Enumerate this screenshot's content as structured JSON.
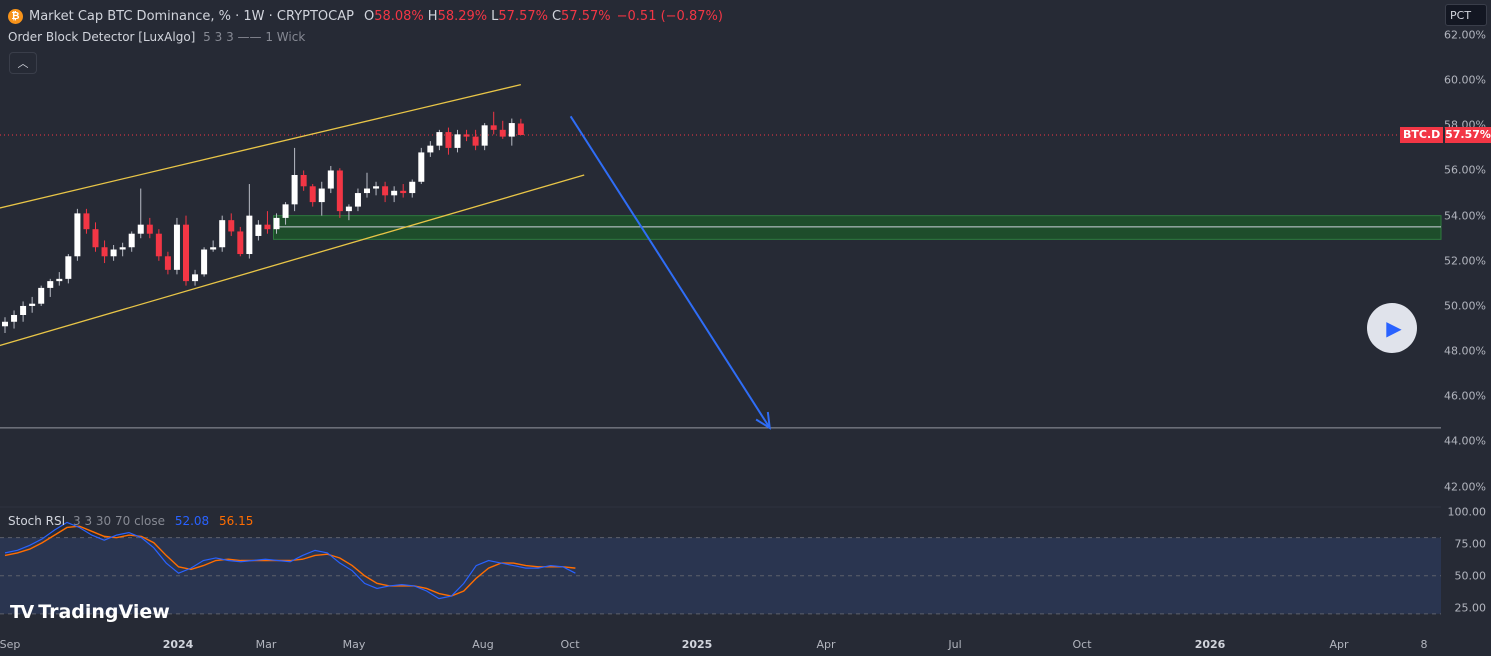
{
  "header": {
    "coin_glyph": "₿",
    "title": "Market Cap BTC Dominance, % · 1W · CRYPTOCAP",
    "open_label": "O",
    "open_value": "58.08%",
    "high_label": "H",
    "high_value": "58.29%",
    "low_label": "L",
    "low_value": "57.57%",
    "close_label": "C",
    "close_value": "57.57%",
    "change": "−0.51 (−0.87%)"
  },
  "indicator": {
    "name": "Order Block Detector [LuxAlgo]",
    "params": "5 3 3 —— 1 Wick",
    "collapse_icon": "chevron-up-icon"
  },
  "stoch": {
    "name": "Stoch RSI",
    "params": "3 3 30 70 close",
    "k_value": "52.08",
    "d_value": "56.15",
    "ticks": [
      "100.00",
      "75.00",
      "50.00",
      "25.00"
    ]
  },
  "scale_mode": "PCT",
  "price_axis": [
    "62.00%",
    "60.00%",
    "58.00%",
    "56.00%",
    "54.00%",
    "52.00%",
    "50.00%",
    "48.00%",
    "46.00%",
    "44.00%",
    "42.00%"
  ],
  "last_price": {
    "symbol": "BTC.D",
    "value": "57.57%"
  },
  "time_axis": [
    {
      "label": "Sep",
      "bold": false
    },
    {
      "label": "2024",
      "bold": true
    },
    {
      "label": "Mar",
      "bold": false
    },
    {
      "label": "May",
      "bold": false
    },
    {
      "label": "Aug",
      "bold": false
    },
    {
      "label": "Oct",
      "bold": false
    },
    {
      "label": "2025",
      "bold": true
    },
    {
      "label": "Apr",
      "bold": false
    },
    {
      "label": "Jul",
      "bold": false
    },
    {
      "label": "Oct",
      "bold": false
    },
    {
      "label": "2026",
      "bold": true
    },
    {
      "label": "Apr",
      "bold": false
    },
    {
      "label": "8",
      "bold": false
    }
  ],
  "logo": {
    "mark": "TV",
    "text": "TradingView"
  },
  "colors": {
    "background": "#262a35",
    "up": "#ffffff",
    "down": "#f23645",
    "channel": "#e8c547",
    "arrow": "#2f6df6",
    "order_block": "#1e4d2b",
    "stoch_k": "#2962ff",
    "stoch_d": "#ff6d00",
    "stoch_band": "#2a3550"
  },
  "chart_data": {
    "type": "candlestick",
    "title": "Market Cap BTC Dominance, % · 1W · CRYPTOCAP",
    "y_unit": "%",
    "ylim": [
      41.0,
      62.5
    ],
    "candles": [
      {
        "o": 49.1,
        "h": 49.5,
        "l": 48.8,
        "c": 49.3
      },
      {
        "o": 49.3,
        "h": 49.8,
        "l": 49.0,
        "c": 49.6
      },
      {
        "o": 49.6,
        "h": 50.2,
        "l": 49.3,
        "c": 50.0
      },
      {
        "o": 50.0,
        "h": 50.4,
        "l": 49.7,
        "c": 50.1
      },
      {
        "o": 50.1,
        "h": 50.9,
        "l": 50.0,
        "c": 50.8
      },
      {
        "o": 50.8,
        "h": 51.2,
        "l": 50.4,
        "c": 51.1
      },
      {
        "o": 51.1,
        "h": 51.5,
        "l": 50.9,
        "c": 51.2
      },
      {
        "o": 51.2,
        "h": 52.3,
        "l": 51.0,
        "c": 52.2
      },
      {
        "o": 52.2,
        "h": 54.3,
        "l": 52.0,
        "c": 54.1
      },
      {
        "o": 54.1,
        "h": 54.3,
        "l": 53.2,
        "c": 53.4
      },
      {
        "o": 53.4,
        "h": 53.7,
        "l": 52.4,
        "c": 52.6
      },
      {
        "o": 52.6,
        "h": 52.9,
        "l": 51.9,
        "c": 52.2
      },
      {
        "o": 52.2,
        "h": 52.7,
        "l": 52.0,
        "c": 52.5
      },
      {
        "o": 52.5,
        "h": 52.8,
        "l": 52.2,
        "c": 52.6
      },
      {
        "o": 52.6,
        "h": 53.3,
        "l": 52.4,
        "c": 53.2
      },
      {
        "o": 53.2,
        "h": 55.2,
        "l": 53.0,
        "c": 53.6
      },
      {
        "o": 53.6,
        "h": 53.9,
        "l": 53.0,
        "c": 53.2
      },
      {
        "o": 53.2,
        "h": 53.4,
        "l": 52.0,
        "c": 52.2
      },
      {
        "o": 52.2,
        "h": 52.4,
        "l": 51.4,
        "c": 51.6
      },
      {
        "o": 51.6,
        "h": 53.9,
        "l": 51.4,
        "c": 53.6
      },
      {
        "o": 53.6,
        "h": 54.0,
        "l": 50.9,
        "c": 51.1
      },
      {
        "o": 51.1,
        "h": 51.6,
        "l": 50.9,
        "c": 51.4
      },
      {
        "o": 51.4,
        "h": 52.6,
        "l": 51.3,
        "c": 52.5
      },
      {
        "o": 52.5,
        "h": 52.9,
        "l": 52.4,
        "c": 52.6
      },
      {
        "o": 52.6,
        "h": 54.0,
        "l": 52.4,
        "c": 53.8
      },
      {
        "o": 53.8,
        "h": 54.1,
        "l": 53.1,
        "c": 53.3
      },
      {
        "o": 53.3,
        "h": 53.5,
        "l": 52.2,
        "c": 52.3
      },
      {
        "o": 52.3,
        "h": 55.4,
        "l": 52.1,
        "c": 54.0
      },
      {
        "o": 53.1,
        "h": 53.8,
        "l": 52.9,
        "c": 53.6
      },
      {
        "o": 53.6,
        "h": 54.2,
        "l": 53.2,
        "c": 53.4
      },
      {
        "o": 53.4,
        "h": 54.1,
        "l": 53.2,
        "c": 53.9
      },
      {
        "o": 53.9,
        "h": 54.6,
        "l": 53.6,
        "c": 54.5
      },
      {
        "o": 54.5,
        "h": 57.0,
        "l": 54.2,
        "c": 55.8
      },
      {
        "o": 55.8,
        "h": 56.0,
        "l": 55.1,
        "c": 55.3
      },
      {
        "o": 55.3,
        "h": 55.4,
        "l": 54.4,
        "c": 54.6
      },
      {
        "o": 54.6,
        "h": 55.5,
        "l": 54.0,
        "c": 55.2
      },
      {
        "o": 55.2,
        "h": 56.2,
        "l": 55.0,
        "c": 56.0
      },
      {
        "o": 56.0,
        "h": 56.1,
        "l": 53.9,
        "c": 54.2
      },
      {
        "o": 54.2,
        "h": 54.5,
        "l": 53.8,
        "c": 54.4
      },
      {
        "o": 54.4,
        "h": 55.2,
        "l": 54.2,
        "c": 55.0
      },
      {
        "o": 55.0,
        "h": 55.9,
        "l": 54.8,
        "c": 55.2
      },
      {
        "o": 55.2,
        "h": 55.5,
        "l": 54.9,
        "c": 55.3
      },
      {
        "o": 55.3,
        "h": 55.5,
        "l": 54.6,
        "c": 54.9
      },
      {
        "o": 54.9,
        "h": 55.3,
        "l": 54.6,
        "c": 55.1
      },
      {
        "o": 55.1,
        "h": 55.4,
        "l": 54.8,
        "c": 55.0
      },
      {
        "o": 55.0,
        "h": 55.6,
        "l": 54.8,
        "c": 55.5
      },
      {
        "o": 55.5,
        "h": 57.0,
        "l": 55.4,
        "c": 56.8
      },
      {
        "o": 56.8,
        "h": 57.3,
        "l": 56.6,
        "c": 57.1
      },
      {
        "o": 57.1,
        "h": 57.8,
        "l": 56.9,
        "c": 57.7
      },
      {
        "o": 57.7,
        "h": 57.9,
        "l": 56.7,
        "c": 57.0
      },
      {
        "o": 57.0,
        "h": 57.8,
        "l": 56.8,
        "c": 57.6
      },
      {
        "o": 57.6,
        "h": 57.8,
        "l": 57.3,
        "c": 57.5
      },
      {
        "o": 57.5,
        "h": 57.8,
        "l": 56.9,
        "c": 57.1
      },
      {
        "o": 57.1,
        "h": 58.1,
        "l": 56.9,
        "c": 58.0
      },
      {
        "o": 58.0,
        "h": 58.6,
        "l": 57.6,
        "c": 57.8
      },
      {
        "o": 57.8,
        "h": 58.2,
        "l": 57.4,
        "c": 57.5
      },
      {
        "o": 57.5,
        "h": 58.3,
        "l": 57.1,
        "c": 58.1
      },
      {
        "o": 58.08,
        "h": 58.29,
        "l": 57.57,
        "c": 57.57
      }
    ],
    "current_price": 57.57,
    "channel_upper": [
      {
        "i": -1,
        "v": 54.3
      },
      {
        "i": 57,
        "v": 59.8
      }
    ],
    "channel_lower": [
      {
        "i": -1,
        "v": 48.2
      },
      {
        "i": 64,
        "v": 55.8
      }
    ],
    "order_block": {
      "from_i": 30,
      "top": 54.0,
      "bottom": 52.95,
      "mid": 53.5
    },
    "target_level": 44.6,
    "projection_arrow": {
      "from_i": 62.5,
      "from_v": 58.4,
      "to_i": 84.5,
      "to_v": 44.6
    },
    "stoch_k": [
      68,
      70,
      74,
      79,
      86,
      92,
      88,
      82,
      78,
      82,
      84,
      80,
      72,
      60,
      52,
      56,
      62,
      64,
      62,
      61,
      62,
      63,
      62,
      61,
      66,
      70,
      68,
      60,
      54,
      44,
      40,
      42,
      43,
      42,
      38,
      32,
      34,
      44,
      58,
      62,
      60,
      58,
      56,
      56,
      58,
      57,
      52
    ],
    "stoch_d": [
      66,
      68,
      71,
      76,
      82,
      88,
      89,
      85,
      81,
      80,
      82,
      81,
      76,
      66,
      57,
      55,
      58,
      62,
      63,
      62,
      62,
      62,
      62,
      62,
      63,
      66,
      67,
      64,
      58,
      50,
      44,
      42,
      42,
      42,
      40,
      36,
      34,
      38,
      48,
      56,
      60,
      60,
      58,
      57,
      57,
      57,
      56
    ]
  }
}
